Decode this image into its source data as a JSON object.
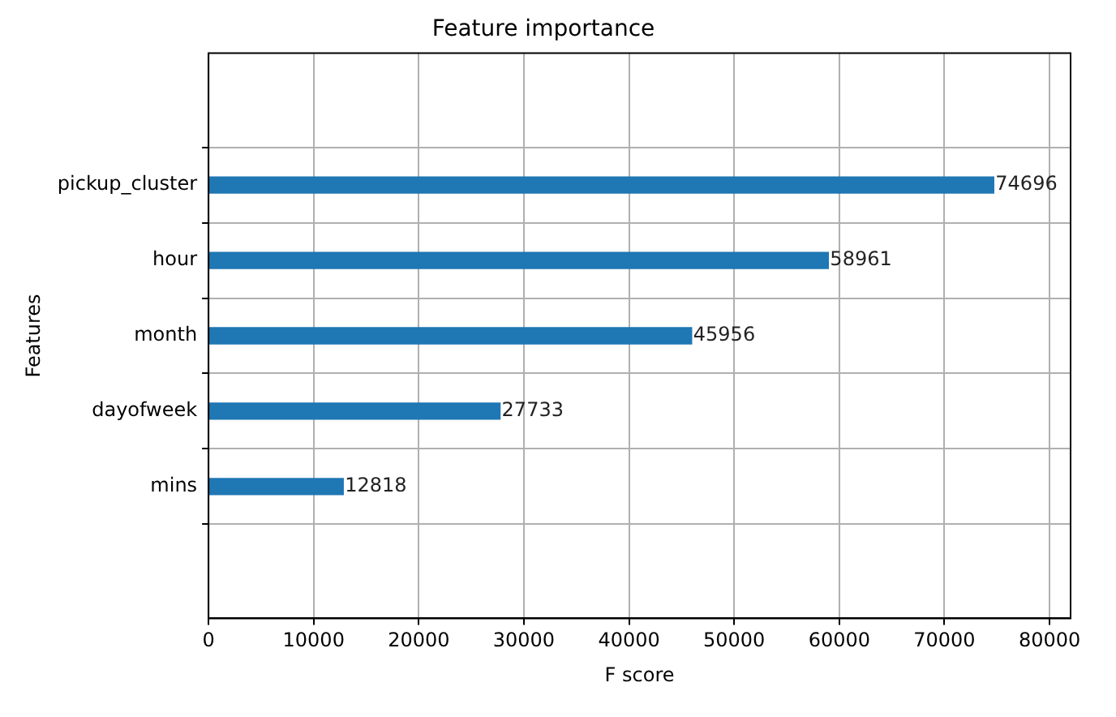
{
  "chart_data": {
    "type": "bar",
    "orientation": "horizontal",
    "title": "Feature importance",
    "xlabel": "F score",
    "ylabel": "Features",
    "categories": [
      "pickup_cluster",
      "hour",
      "month",
      "dayofweek",
      "mins"
    ],
    "values": [
      74696,
      58961,
      45956,
      27733,
      12818
    ],
    "color": "#1f77b4",
    "xlim": [
      0,
      82000
    ],
    "xticks": [
      0,
      10000,
      20000,
      30000,
      40000,
      50000,
      60000,
      70000,
      80000
    ],
    "grid": true,
    "data_labels": true
  }
}
